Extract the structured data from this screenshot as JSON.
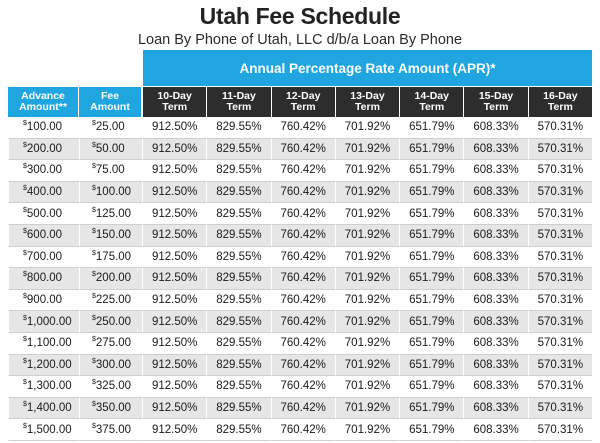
{
  "title": "Utah Fee Schedule",
  "subtitle": "Loan By Phone of Utah, LLC d/b/a Loan By Phone",
  "apr_banner": "Annual Percentage Rate Amount (APR)*",
  "columns": {
    "advance_line1": "Advance",
    "advance_line2": "Amount**",
    "fee_line1": "Fee",
    "fee_line2": "Amount",
    "terms": [
      {
        "line1": "10-Day",
        "line2": "Term"
      },
      {
        "line1": "11-Day",
        "line2": "Term"
      },
      {
        "line1": "12-Day",
        "line2": "Term"
      },
      {
        "line1": "13-Day",
        "line2": "Term"
      },
      {
        "line1": "14-Day",
        "line2": "Term"
      },
      {
        "line1": "15-Day",
        "line2": "Term"
      },
      {
        "line1": "16-Day",
        "line2": "Term"
      }
    ]
  },
  "currency_symbol": "$",
  "rows": [
    {
      "advance": "100.00",
      "fee": "25.00",
      "aprs": [
        "912.50%",
        "829.55%",
        "760.42%",
        "701.92%",
        "651.79%",
        "608.33%",
        "570.31%"
      ]
    },
    {
      "advance": "200.00",
      "fee": "50.00",
      "aprs": [
        "912.50%",
        "829.55%",
        "760.42%",
        "701.92%",
        "651.79%",
        "608.33%",
        "570.31%"
      ]
    },
    {
      "advance": "300.00",
      "fee": "75.00",
      "aprs": [
        "912.50%",
        "829.55%",
        "760.42%",
        "701.92%",
        "651.79%",
        "608.33%",
        "570.31%"
      ]
    },
    {
      "advance": "400.00",
      "fee": "100.00",
      "aprs": [
        "912.50%",
        "829.55%",
        "760.42%",
        "701.92%",
        "651.79%",
        "608.33%",
        "570.31%"
      ]
    },
    {
      "advance": "500.00",
      "fee": "125.00",
      "aprs": [
        "912.50%",
        "829.55%",
        "760.42%",
        "701.92%",
        "651.79%",
        "608.33%",
        "570.31%"
      ]
    },
    {
      "advance": "600.00",
      "fee": "150.00",
      "aprs": [
        "912.50%",
        "829.55%",
        "760.42%",
        "701.92%",
        "651.79%",
        "608.33%",
        "570.31%"
      ]
    },
    {
      "advance": "700.00",
      "fee": "175.00",
      "aprs": [
        "912.50%",
        "829.55%",
        "760.42%",
        "701.92%",
        "651.79%",
        "608.33%",
        "570.31%"
      ]
    },
    {
      "advance": "800.00",
      "fee": "200.00",
      "aprs": [
        "912.50%",
        "829.55%",
        "760.42%",
        "701.92%",
        "651.79%",
        "608.33%",
        "570.31%"
      ]
    },
    {
      "advance": "900.00",
      "fee": "225.00",
      "aprs": [
        "912.50%",
        "829.55%",
        "760.42%",
        "701.92%",
        "651.79%",
        "608.33%",
        "570.31%"
      ]
    },
    {
      "advance": "1,000.00",
      "fee": "250.00",
      "aprs": [
        "912.50%",
        "829.55%",
        "760.42%",
        "701.92%",
        "651.79%",
        "608.33%",
        "570.31%"
      ]
    },
    {
      "advance": "1,100.00",
      "fee": "275.00",
      "aprs": [
        "912.50%",
        "829.55%",
        "760.42%",
        "701.92%",
        "651.79%",
        "608.33%",
        "570.31%"
      ]
    },
    {
      "advance": "1,200.00",
      "fee": "300.00",
      "aprs": [
        "912.50%",
        "829.55%",
        "760.42%",
        "701.92%",
        "651.79%",
        "608.33%",
        "570.31%"
      ]
    },
    {
      "advance": "1,300.00",
      "fee": "325.00",
      "aprs": [
        "912.50%",
        "829.55%",
        "760.42%",
        "701.92%",
        "651.79%",
        "608.33%",
        "570.31%"
      ]
    },
    {
      "advance": "1,400.00",
      "fee": "350.00",
      "aprs": [
        "912.50%",
        "829.55%",
        "760.42%",
        "701.92%",
        "651.79%",
        "608.33%",
        "570.31%"
      ]
    },
    {
      "advance": "1,500.00",
      "fee": "375.00",
      "aprs": [
        "912.50%",
        "829.55%",
        "760.42%",
        "701.92%",
        "651.79%",
        "608.33%",
        "570.31%"
      ]
    }
  ],
  "colors": {
    "accent_blue": "#1fa6e1",
    "header_dark": "#2d2d2d",
    "row_stripe": "#e6e6e6"
  }
}
